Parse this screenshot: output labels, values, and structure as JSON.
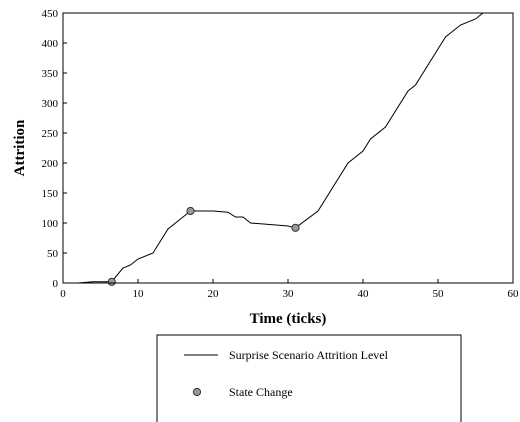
{
  "chart_data": {
    "type": "line",
    "xlabel": "Time (ticks)",
    "ylabel": "Attrition",
    "xlim": [
      0,
      60
    ],
    "ylim": [
      0,
      450
    ],
    "x_ticks": [
      0,
      10,
      20,
      30,
      40,
      50,
      60
    ],
    "y_ticks": [
      0,
      50,
      100,
      150,
      200,
      250,
      300,
      350,
      400,
      450
    ],
    "grid": false,
    "legend_position": "bottom",
    "series": [
      {
        "name": "Surprise Scenario Attrition Level",
        "style": "line",
        "color": "#000000",
        "x": [
          0,
          2,
          4,
          5,
          6,
          6.5,
          7,
          8,
          9,
          10,
          12,
          14,
          16,
          17,
          18,
          20,
          22,
          23,
          24,
          25,
          28,
          30,
          31,
          34,
          38,
          40,
          41,
          43,
          46,
          47,
          51,
          53,
          55,
          56
        ],
        "y": [
          0,
          0,
          2,
          2,
          2,
          2,
          10,
          25,
          30,
          40,
          50,
          90,
          110,
          120,
          120,
          120,
          118,
          110,
          110,
          100,
          97,
          95,
          92,
          120,
          200,
          220,
          240,
          260,
          320,
          330,
          410,
          430,
          440,
          450
        ]
      },
      {
        "name": "State Change",
        "style": "marker",
        "color": "#999999",
        "x": [
          6.5,
          17,
          31
        ],
        "y": [
          2,
          120,
          92
        ]
      }
    ]
  }
}
